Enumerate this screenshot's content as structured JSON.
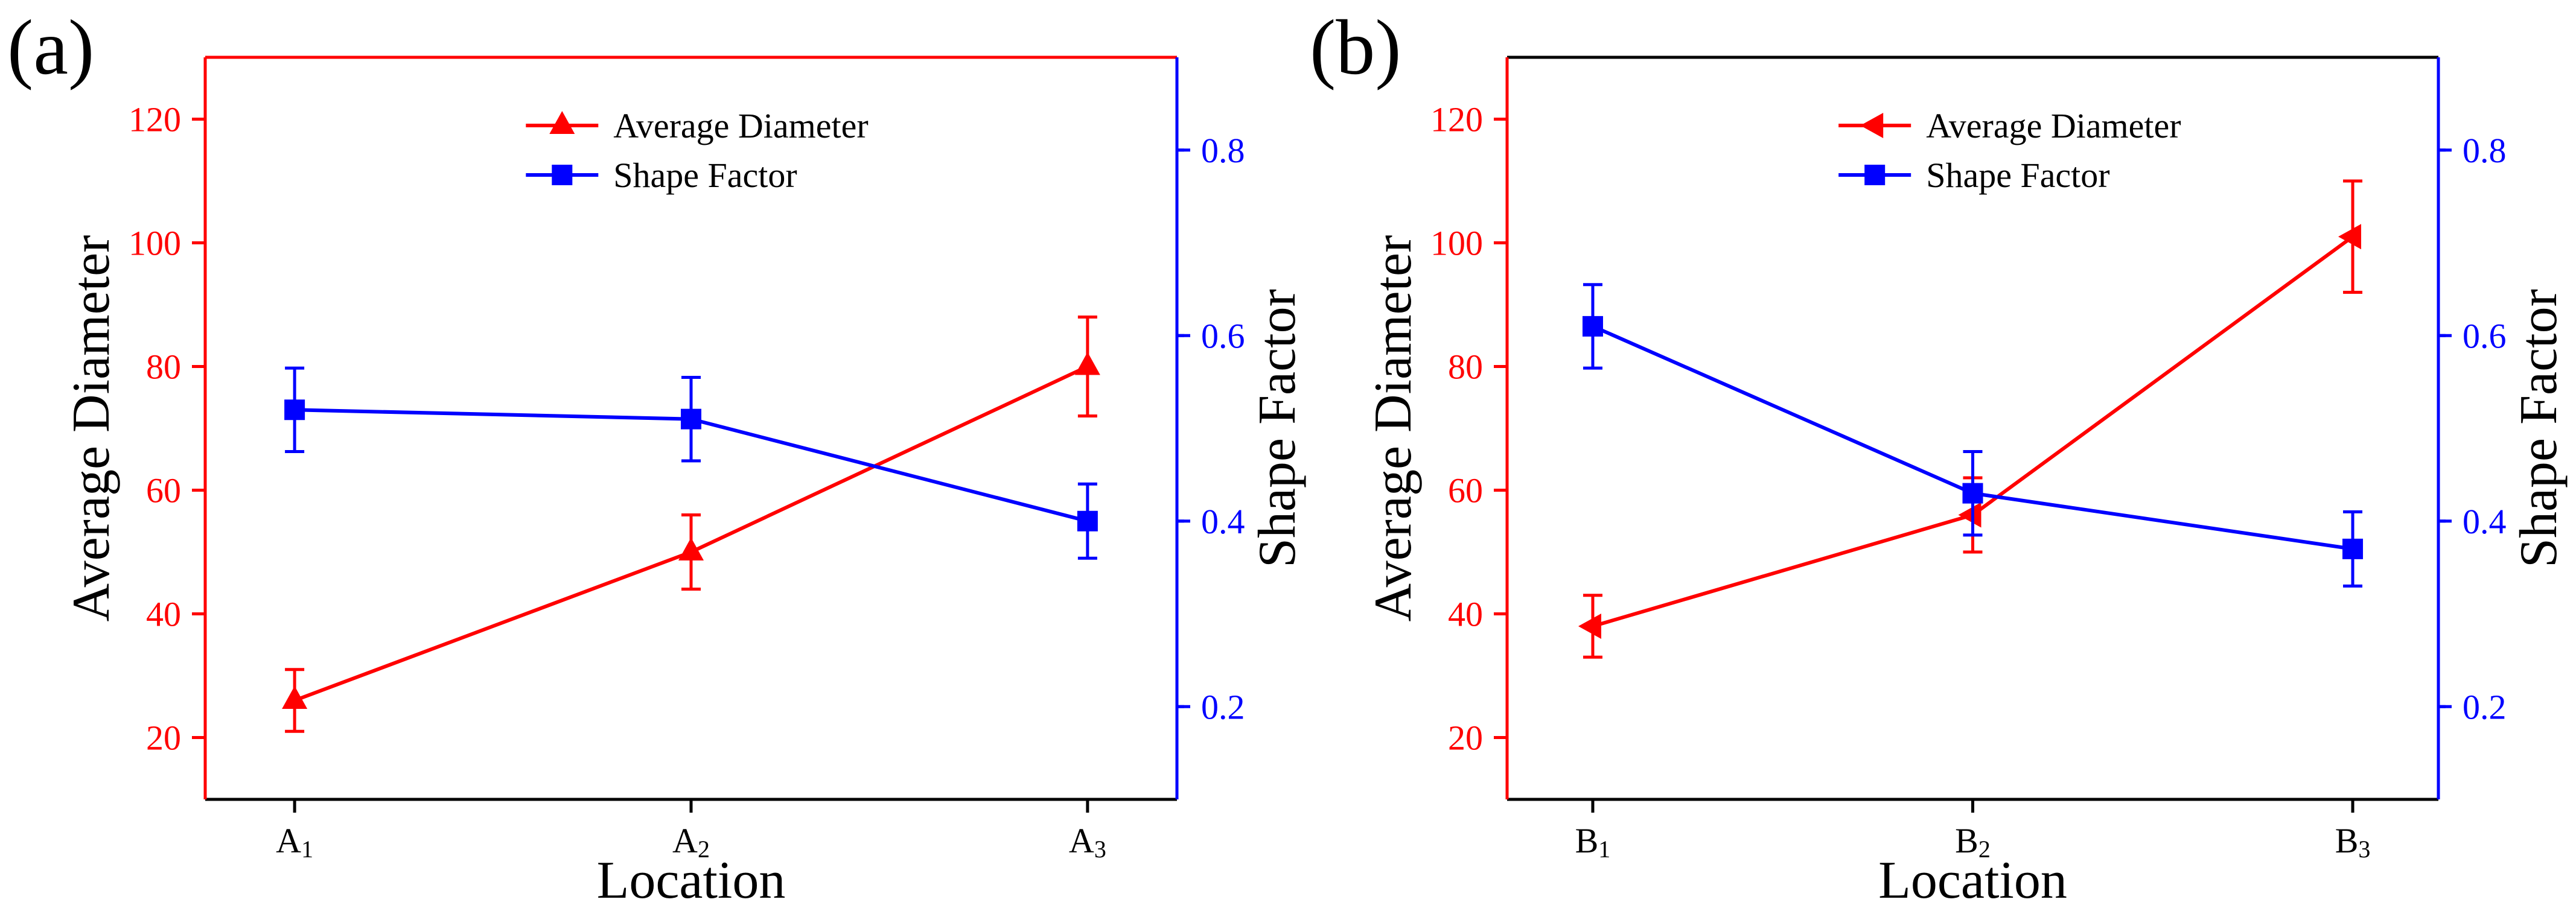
{
  "colors": {
    "red": "#ff0000",
    "blue": "#0000ff",
    "black": "#000000"
  },
  "chart_data": [
    {
      "panel_label": "(a)",
      "type": "line",
      "xlabel": "Location",
      "ylabel_left": "Average Diameter",
      "ylabel_right": "Shape Factor",
      "categories": [
        {
          "letter": "A",
          "sub": "1"
        },
        {
          "letter": "A",
          "sub": "2"
        },
        {
          "letter": "A",
          "sub": "3"
        }
      ],
      "ylim_left": [
        10,
        130
      ],
      "yticks_left": [
        20,
        40,
        60,
        80,
        100,
        120
      ],
      "ylim_right": [
        0.1,
        0.9
      ],
      "yticks_right": [
        "0.2",
        "0.4",
        "0.6",
        "0.8"
      ],
      "legend_position": "top-center",
      "series": [
        {
          "name": "Average Diameter",
          "axis": "left",
          "marker": "triangle-up",
          "color": "#ff0000",
          "values": [
            26,
            50,
            80
          ],
          "errors": [
            5,
            6,
            8
          ]
        },
        {
          "name": "Shape Factor",
          "axis": "right",
          "marker": "square",
          "color": "#0000ff",
          "values": [
            0.52,
            0.51,
            0.4
          ],
          "errors": [
            0.045,
            0.045,
            0.04
          ]
        }
      ]
    },
    {
      "panel_label": "(b)",
      "type": "line",
      "xlabel": "Location",
      "ylabel_left": "Average Diameter",
      "ylabel_right": "Shape Factor",
      "categories": [
        {
          "letter": "B",
          "sub": "1"
        },
        {
          "letter": "B",
          "sub": "2"
        },
        {
          "letter": "B",
          "sub": "3"
        }
      ],
      "ylim_left": [
        10,
        130
      ],
      "yticks_left": [
        20,
        40,
        60,
        80,
        100,
        120
      ],
      "ylim_right": [
        0.1,
        0.9
      ],
      "yticks_right": [
        "0.2",
        "0.4",
        "0.6",
        "0.8"
      ],
      "legend_position": "top-center",
      "series": [
        {
          "name": "Average Diameter",
          "axis": "left",
          "marker": "triangle-left",
          "color": "#ff0000",
          "values": [
            38,
            56,
            101
          ],
          "errors": [
            5,
            6,
            9
          ]
        },
        {
          "name": "Shape Factor",
          "axis": "right",
          "marker": "square",
          "color": "#0000ff",
          "values": [
            0.61,
            0.43,
            0.37
          ],
          "errors": [
            0.045,
            0.045,
            0.04
          ]
        }
      ]
    }
  ]
}
